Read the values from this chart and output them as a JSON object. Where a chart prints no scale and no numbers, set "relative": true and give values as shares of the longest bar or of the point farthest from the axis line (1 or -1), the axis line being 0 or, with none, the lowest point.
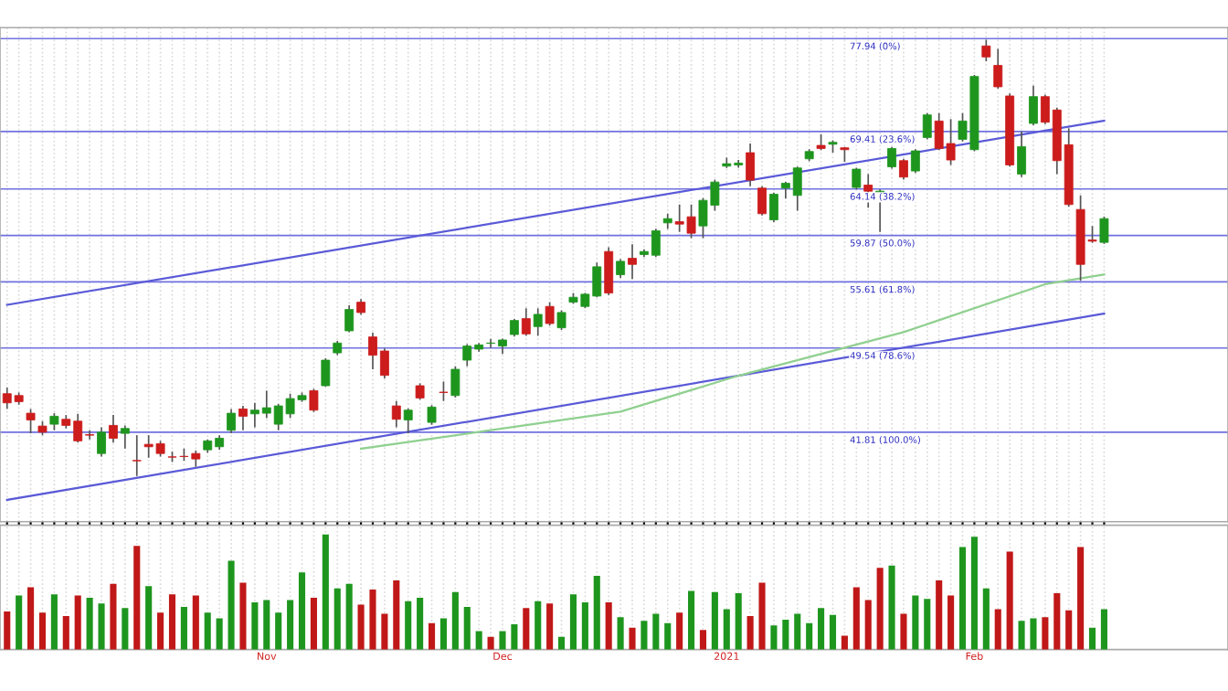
{
  "chart_data": [
    {
      "type": "candlestick",
      "categories": [
        null,
        null,
        null,
        null,
        null,
        null,
        null,
        null,
        null,
        null,
        null,
        null,
        null,
        null,
        null,
        null,
        null,
        null,
        null,
        null,
        null,
        null,
        null,
        null,
        null,
        null,
        null,
        null,
        null,
        null,
        null,
        null,
        null,
        null,
        null,
        null,
        null,
        null,
        null,
        null,
        null,
        null,
        null,
        null,
        null,
        null,
        null,
        null,
        null,
        null,
        null,
        null,
        null,
        null,
        null,
        null,
        null,
        null,
        null,
        null,
        null,
        null,
        null,
        null,
        null,
        null,
        null,
        null,
        null,
        null,
        null,
        null,
        null,
        null,
        null,
        null,
        null,
        null,
        null,
        null,
        null,
        null,
        null,
        null,
        null,
        null,
        null,
        null,
        null,
        null,
        null,
        null,
        null,
        null
      ],
      "ohlc": [
        [
          45.35,
          45.91,
          43.95,
          44.51
        ],
        [
          45.18,
          45.46,
          44.34,
          44.62
        ],
        [
          43.56,
          43.95,
          41.71,
          42.94
        ],
        [
          42.38,
          42.83,
          41.54,
          41.82
        ],
        [
          42.55,
          43.56,
          41.99,
          43.28
        ],
        [
          43.0,
          43.39,
          42.16,
          42.44
        ],
        [
          42.83,
          43.5,
          40.87,
          41.02
        ],
        [
          41.6,
          41.99,
          41.15,
          41.54
        ],
        [
          39.86,
          42.27,
          39.58,
          41.82
        ],
        [
          42.44,
          43.39,
          40.87,
          41.26
        ],
        [
          41.71,
          42.44,
          40.31,
          42.16
        ],
        [
          39.22,
          41.54,
          37.79,
          39.19
        ],
        [
          40.7,
          41.54,
          39.47,
          40.48
        ],
        [
          40.76,
          41.02,
          39.58,
          39.86
        ],
        [
          39.55,
          40.03,
          39.08,
          39.53
        ],
        [
          39.6,
          40.31,
          39.19,
          39.58
        ],
        [
          39.86,
          40.14,
          38.63,
          39.36
        ],
        [
          40.2,
          41.15,
          39.92,
          41.02
        ],
        [
          40.48,
          41.54,
          40.2,
          41.26
        ],
        [
          41.99,
          43.95,
          41.71,
          43.56
        ],
        [
          43.95,
          44.23,
          41.99,
          43.28
        ],
        [
          43.5,
          44.51,
          42.27,
          43.84
        ],
        [
          43.56,
          45.63,
          43.11,
          44.06
        ],
        [
          42.55,
          44.4,
          41.99,
          44.23
        ],
        [
          43.5,
          45.35,
          43.11,
          44.9
        ],
        [
          44.79,
          45.46,
          44.6,
          45.18
        ],
        [
          45.63,
          45.8,
          43.67,
          43.84
        ],
        [
          46.08,
          48.6,
          46.0,
          48.43
        ],
        [
          49.1,
          50.2,
          48.9,
          50.0
        ],
        [
          51.12,
          53.47,
          51.0,
          53.08
        ],
        [
          53.75,
          54.03,
          52.6,
          52.8
        ],
        [
          50.56,
          50.95,
          47.59,
          48.88
        ],
        [
          49.27,
          49.5,
          46.75,
          47.03
        ],
        [
          44.23,
          44.68,
          42.27,
          43.0
        ],
        [
          42.94,
          44.0,
          41.71,
          43.84
        ],
        [
          46.08,
          46.3,
          44.8,
          44.96
        ],
        [
          42.72,
          44.3,
          42.5,
          44.12
        ],
        [
          45.49,
          46.47,
          44.68,
          45.46
        ],
        [
          45.18,
          47.87,
          45.0,
          47.59
        ],
        [
          48.43,
          49.9,
          47.87,
          49.72
        ],
        [
          49.44,
          50.0,
          49.2,
          49.83
        ],
        [
          49.97,
          50.39,
          49.55,
          50.0
        ],
        [
          49.72,
          50.4,
          48.99,
          50.28
        ],
        [
          50.78,
          52.2,
          50.6,
          52.07
        ],
        [
          52.24,
          53.19,
          50.67,
          50.84
        ],
        [
          51.51,
          53.19,
          50.67,
          52.63
        ],
        [
          53.36,
          53.75,
          51.6,
          51.79
        ],
        [
          51.4,
          53.0,
          51.2,
          52.8
        ],
        [
          53.75,
          54.59,
          53.6,
          54.2
        ],
        [
          53.36,
          54.6,
          53.2,
          54.48
        ],
        [
          54.31,
          57.39,
          54.2,
          57.0
        ],
        [
          58.4,
          58.79,
          54.4,
          54.59
        ],
        [
          56.27,
          57.7,
          55.99,
          57.5
        ],
        [
          57.78,
          59.07,
          55.88,
          57.22
        ],
        [
          58.12,
          58.6,
          57.9,
          58.4
        ],
        [
          58.06,
          60.5,
          57.9,
          60.3
        ],
        [
          61.03,
          61.87,
          60.47,
          61.42
        ],
        [
          61.14,
          62.71,
          60.19,
          60.92
        ],
        [
          61.59,
          62.71,
          59.63,
          60.08
        ],
        [
          60.75,
          63.3,
          59.63,
          63.1
        ],
        [
          62.65,
          65.0,
          62.15,
          64.78
        ],
        [
          66.24,
          67.02,
          66.07,
          66.46
        ],
        [
          66.35,
          66.8,
          66.1,
          66.52
        ],
        [
          67.47,
          68.31,
          64.39,
          64.95
        ],
        [
          64.22,
          64.4,
          61.7,
          61.87
        ],
        [
          61.31,
          63.8,
          61.1,
          63.66
        ],
        [
          64.22,
          64.8,
          63.27,
          64.67
        ],
        [
          63.55,
          66.2,
          62.15,
          66.07
        ],
        [
          66.91,
          67.8,
          66.7,
          67.58
        ],
        [
          68.14,
          69.15,
          67.7,
          67.86
        ],
        [
          68.25,
          68.6,
          67.47,
          68.42
        ],
        [
          67.92,
          68.0,
          66.63,
          67.75
        ],
        [
          64.28,
          66.1,
          64.1,
          65.96
        ],
        [
          64.5,
          65.51,
          62.43,
          63.94
        ],
        [
          62.99,
          64.1,
          60.19,
          63.94
        ],
        [
          66.18,
          68.0,
          66.0,
          67.86
        ],
        [
          66.74,
          66.9,
          65.0,
          65.23
        ],
        [
          65.79,
          67.8,
          65.6,
          67.64
        ],
        [
          68.87,
          71.1,
          68.7,
          70.94
        ],
        [
          70.38,
          71.11,
          67.7,
          67.86
        ],
        [
          68.31,
          70.55,
          66.35,
          66.8
        ],
        [
          68.7,
          71.11,
          68.5,
          70.38
        ],
        [
          67.75,
          74.6,
          67.6,
          74.47
        ],
        [
          77.27,
          77.83,
          75.87,
          76.26
        ],
        [
          75.48,
          76.99,
          73.35,
          73.52
        ],
        [
          72.68,
          72.9,
          66.2,
          66.35
        ],
        [
          65.51,
          69.43,
          65.23,
          68.03
        ],
        [
          70.16,
          73.63,
          70.0,
          72.62
        ],
        [
          72.62,
          72.8,
          70.1,
          70.27
        ],
        [
          71.39,
          71.6,
          65.51,
          66.74
        ],
        [
          68.2,
          69.71,
          62.5,
          62.71
        ],
        [
          62.26,
          63.55,
          55.71,
          57.22
        ],
        [
          59.46,
          60.75,
          59.2,
          59.35
        ],
        [
          59.24,
          61.6,
          59.1,
          61.42
        ]
      ],
      "colors": [
        "#cc1c1c",
        "#cc1c1c",
        "#cc1c1c",
        "#cc1c1c",
        "#1e961e",
        "#cc1c1c",
        "#cc1c1c",
        "#cc1c1c",
        "#1e961e",
        "#cc1c1c",
        "#1e961e",
        "#cc1c1c",
        "#cc1c1c",
        "#cc1c1c",
        "#cc1c1c",
        "#cc1c1c",
        "#cc1c1c",
        "#1e961e",
        "#1e961e",
        "#1e961e",
        "#cc1c1c",
        "#1e961e",
        "#1e961e",
        "#1e961e",
        "#1e961e",
        "#1e961e",
        "#cc1c1c",
        "#1e961e",
        "#1e961e",
        "#1e961e",
        "#cc1c1c",
        "#cc1c1c",
        "#cc1c1c",
        "#cc1c1c",
        "#1e961e",
        "#cc1c1c",
        "#1e961e",
        "#cc1c1c",
        "#1e961e",
        "#1e961e",
        "#1e961e",
        "#1e961e",
        "#1e961e",
        "#1e961e",
        "#cc1c1c",
        "#1e961e",
        "#cc1c1c",
        "#1e961e",
        "#1e961e",
        "#1e961e",
        "#1e961e",
        "#cc1c1c",
        "#1e961e",
        "#cc1c1c",
        "#1e961e",
        "#1e961e",
        "#1e961e",
        "#cc1c1c",
        "#cc1c1c",
        "#1e961e",
        "#1e961e",
        "#1e961e",
        "#1e961e",
        "#cc1c1c",
        "#cc1c1c",
        "#1e961e",
        "#1e961e",
        "#1e961e",
        "#1e961e",
        "#cc1c1c",
        "#1e961e",
        "#cc1c1c",
        "#1e961e",
        "#cc1c1c",
        "#1e961e",
        "#1e961e",
        "#cc1c1c",
        "#1e961e",
        "#1e961e",
        "#cc1c1c",
        "#cc1c1c",
        "#1e961e",
        "#1e961e",
        "#cc1c1c",
        "#cc1c1c",
        "#cc1c1c",
        "#1e961e",
        "#1e961e",
        "#cc1c1c",
        "#cc1c1c",
        "#cc1c1c",
        "#cc1c1c",
        "#cc1c1c",
        "#1e961e"
      ],
      "series": [
        {
          "type": "line",
          "color": "#5a5ad8",
          "values": [
            53.5,
            null,
            null,
            null,
            null,
            null,
            null,
            null,
            null,
            null,
            null,
            null,
            null,
            null,
            null,
            null,
            null,
            null,
            null,
            null,
            null,
            null,
            null,
            null,
            null,
            null,
            null,
            null,
            null,
            null,
            null,
            null,
            null,
            null,
            null,
            null,
            null,
            null,
            null,
            null,
            null,
            null,
            null,
            null,
            null,
            null,
            null,
            null,
            null,
            null,
            null,
            null,
            null,
            null,
            null,
            null,
            null,
            null,
            null,
            null,
            null,
            null,
            null,
            null,
            null,
            null,
            null,
            null,
            null,
            null,
            null,
            null,
            null,
            null,
            null,
            null,
            null,
            null,
            null,
            null,
            null,
            null,
            null,
            null,
            null,
            null,
            null,
            null,
            null,
            null,
            null,
            null,
            null,
            70.4
          ]
        },
        {
          "type": "line",
          "color": "#5a5ad8",
          "values": [
            35.6,
            null,
            null,
            null,
            null,
            null,
            null,
            null,
            null,
            null,
            null,
            null,
            null,
            null,
            null,
            null,
            null,
            null,
            null,
            null,
            null,
            null,
            null,
            null,
            null,
            null,
            null,
            null,
            null,
            null,
            null,
            null,
            null,
            null,
            null,
            null,
            null,
            null,
            null,
            null,
            null,
            null,
            null,
            null,
            null,
            null,
            null,
            null,
            null,
            null,
            null,
            null,
            null,
            null,
            null,
            null,
            null,
            null,
            null,
            null,
            null,
            null,
            null,
            null,
            null,
            null,
            null,
            null,
            null,
            null,
            null,
            null,
            null,
            null,
            null,
            null,
            null,
            null,
            null,
            null,
            null,
            null,
            null,
            null,
            null,
            null,
            null,
            null,
            null,
            null,
            null,
            null,
            null,
            52.7
          ]
        },
        {
          "type": "line",
          "color": "#90d090",
          "values": [
            null,
            null,
            null,
            null,
            null,
            null,
            null,
            null,
            null,
            null,
            null,
            null,
            null,
            null,
            null,
            null,
            null,
            null,
            null,
            null,
            null,
            null,
            null,
            null,
            null,
            null,
            null,
            null,
            null,
            null,
            40.3,
            null,
            null,
            null,
            null,
            null,
            null,
            null,
            null,
            null,
            null,
            42.0,
            null,
            null,
            null,
            null,
            null,
            null,
            null,
            null,
            null,
            null,
            43.7,
            null,
            null,
            null,
            null,
            null,
            null,
            null,
            null,
            null,
            47.0,
            null,
            null,
            null,
            null,
            null,
            null,
            null,
            null,
            null,
            null,
            null,
            null,
            null,
            51.0,
            null,
            null,
            null,
            null,
            null,
            null,
            null,
            null,
            null,
            null,
            null,
            55.4,
            null,
            null,
            null,
            null,
            56.3
          ]
        }
      ],
      "ref_lines": [
        {
          "axis": "y",
          "value": 77.94,
          "label": "77.94 (0%)",
          "color": "#7070e0"
        },
        {
          "axis": "y",
          "value": 69.41,
          "label": "69.41 (23.6%)",
          "color": "#7070e0"
        },
        {
          "axis": "y",
          "value": 64.14,
          "label": "64.14 (38.2%)",
          "color": "#7070e0"
        },
        {
          "axis": "y",
          "value": 59.87,
          "label": "59.87 (50.0%)",
          "color": "#7070e0"
        },
        {
          "axis": "y",
          "value": 55.61,
          "label": "55.61 (61.8%)",
          "color": "#7070e0"
        },
        {
          "axis": "y",
          "value": 49.54,
          "label": "49.54 (78.6%)",
          "color": "#7070e0"
        },
        {
          "axis": "y",
          "value": 41.81,
          "label": "41.81 (100.0%)",
          "color": "#7070e0"
        }
      ],
      "ylim": [
        33.6,
        78.95
      ],
      "grid": true,
      "tick_labels": false
    },
    {
      "type": "bar",
      "relative": true,
      "categories": [
        null,
        null,
        null,
        null,
        null,
        null,
        null,
        null,
        null,
        null,
        null,
        null,
        null,
        null,
        null,
        null,
        null,
        null,
        null,
        null,
        null,
        null,
        "Nov",
        null,
        null,
        null,
        null,
        null,
        null,
        null,
        null,
        null,
        null,
        null,
        null,
        null,
        null,
        null,
        null,
        null,
        null,
        null,
        "Dec",
        null,
        null,
        null,
        null,
        null,
        null,
        null,
        null,
        null,
        null,
        null,
        null,
        null,
        null,
        null,
        null,
        null,
        null,
        "2021",
        null,
        null,
        null,
        null,
        null,
        null,
        null,
        null,
        null,
        null,
        null,
        null,
        null,
        null,
        null,
        null,
        null,
        null,
        null,
        null,
        "Feb",
        null,
        null,
        null,
        null,
        null,
        null,
        null,
        null,
        null,
        null,
        null
      ],
      "values": [
        0.33,
        0.47,
        0.54,
        0.32,
        0.48,
        0.29,
        0.47,
        0.45,
        0.4,
        0.57,
        0.36,
        0.9,
        0.55,
        0.32,
        0.48,
        0.37,
        0.47,
        0.32,
        0.27,
        0.77,
        0.58,
        0.41,
        0.43,
        0.32,
        0.43,
        0.67,
        0.45,
        1,
        0.53,
        0.57,
        0.39,
        0.52,
        0.31,
        0.6,
        0.42,
        0.45,
        0.23,
        0.27,
        0.5,
        0.37,
        0.16,
        0.11,
        0.16,
        0.22,
        0.36,
        0.42,
        0.4,
        0.11,
        0.48,
        0.41,
        0.64,
        0.41,
        0.28,
        0.19,
        0.25,
        0.31,
        0.23,
        0.32,
        0.51,
        0.17,
        0.5,
        0.35,
        0.49,
        0.29,
        0.58,
        0.21,
        0.26,
        0.31,
        0.23,
        0.36,
        0.3,
        0.12,
        0.54,
        0.43,
        0.71,
        0.73,
        0.31,
        0.47,
        0.44,
        0.6,
        0.47,
        0.89,
        0.98,
        0.53,
        0.35,
        0.85,
        0.25,
        0.27,
        0.28,
        0.49,
        0.34,
        0.89,
        0.19,
        0.35
      ],
      "colors": [
        "#c01818",
        "#1e961e",
        "#c01818",
        "#c01818",
        "#1e961e",
        "#c01818",
        "#c01818",
        "#1e961e",
        "#1e961e",
        "#c01818",
        "#1e961e",
        "#c01818",
        "#1e961e",
        "#c01818",
        "#c01818",
        "#1e961e",
        "#c01818",
        "#1e961e",
        "#1e961e",
        "#1e961e",
        "#c01818",
        "#1e961e",
        "#1e961e",
        "#1e961e",
        "#1e961e",
        "#1e961e",
        "#c01818",
        "#1e961e",
        "#1e961e",
        "#1e961e",
        "#c01818",
        "#c01818",
        "#c01818",
        "#c01818",
        "#1e961e",
        "#1e961e",
        "#c01818",
        "#1e961e",
        "#1e961e",
        "#1e961e",
        "#1e961e",
        "#c01818",
        "#1e961e",
        "#1e961e",
        "#c01818",
        "#1e961e",
        "#c01818",
        "#1e961e",
        "#1e961e",
        "#1e961e",
        "#1e961e",
        "#c01818",
        "#1e961e",
        "#c01818",
        "#1e961e",
        "#1e961e",
        "#1e961e",
        "#c01818",
        "#1e961e",
        "#c01818",
        "#1e961e",
        "#1e961e",
        "#1e961e",
        "#c01818",
        "#c01818",
        "#1e961e",
        "#1e961e",
        "#1e961e",
        "#1e961e",
        "#1e961e",
        "#1e961e",
        "#c01818",
        "#c01818",
        "#c01818",
        "#c01818",
        "#1e961e",
        "#c01818",
        "#1e961e",
        "#1e961e",
        "#c01818",
        "#c01818",
        "#1e961e",
        "#1e961e",
        "#1e961e",
        "#c01818",
        "#c01818",
        "#1e961e",
        "#1e961e",
        "#c01818",
        "#c01818",
        "#c01818",
        "#c01818",
        "#1e961e",
        "#1e961e"
      ],
      "grid": true,
      "tick_labels": "x"
    }
  ]
}
